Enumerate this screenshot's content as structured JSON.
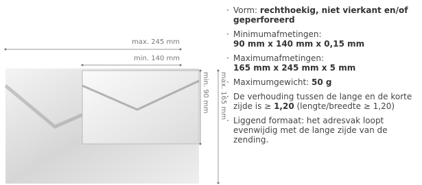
{
  "dimensions": {
    "max_width": "max. 245 mm",
    "min_width": "min. 140 mm",
    "min_height": "min. 90 mm",
    "max_height": "max. 165 mm"
  },
  "requirements": [
    {
      "label": "Vorm: ",
      "value": "rechthoekig, niet vierkant en/of geperforeerd"
    },
    {
      "label": "Minimumafmetingen:",
      "value": "90 mm x 140 mm x 0,15 mm"
    },
    {
      "label": "Maximumafmetingen:",
      "value": "165 mm x 245 mm x 5 mm"
    },
    {
      "label": "Maximumgewicht: ",
      "value": "50 g"
    },
    {
      "label": "De verhouding tussen de lange en de korte zijde is ≥ ",
      "value": "1,20",
      "suffix": " (lengte/breedte ≥ 1,20)"
    },
    {
      "label": "Liggend formaat: het adresvak loopt evenwijdig met de lange zijde van de zending."
    }
  ]
}
